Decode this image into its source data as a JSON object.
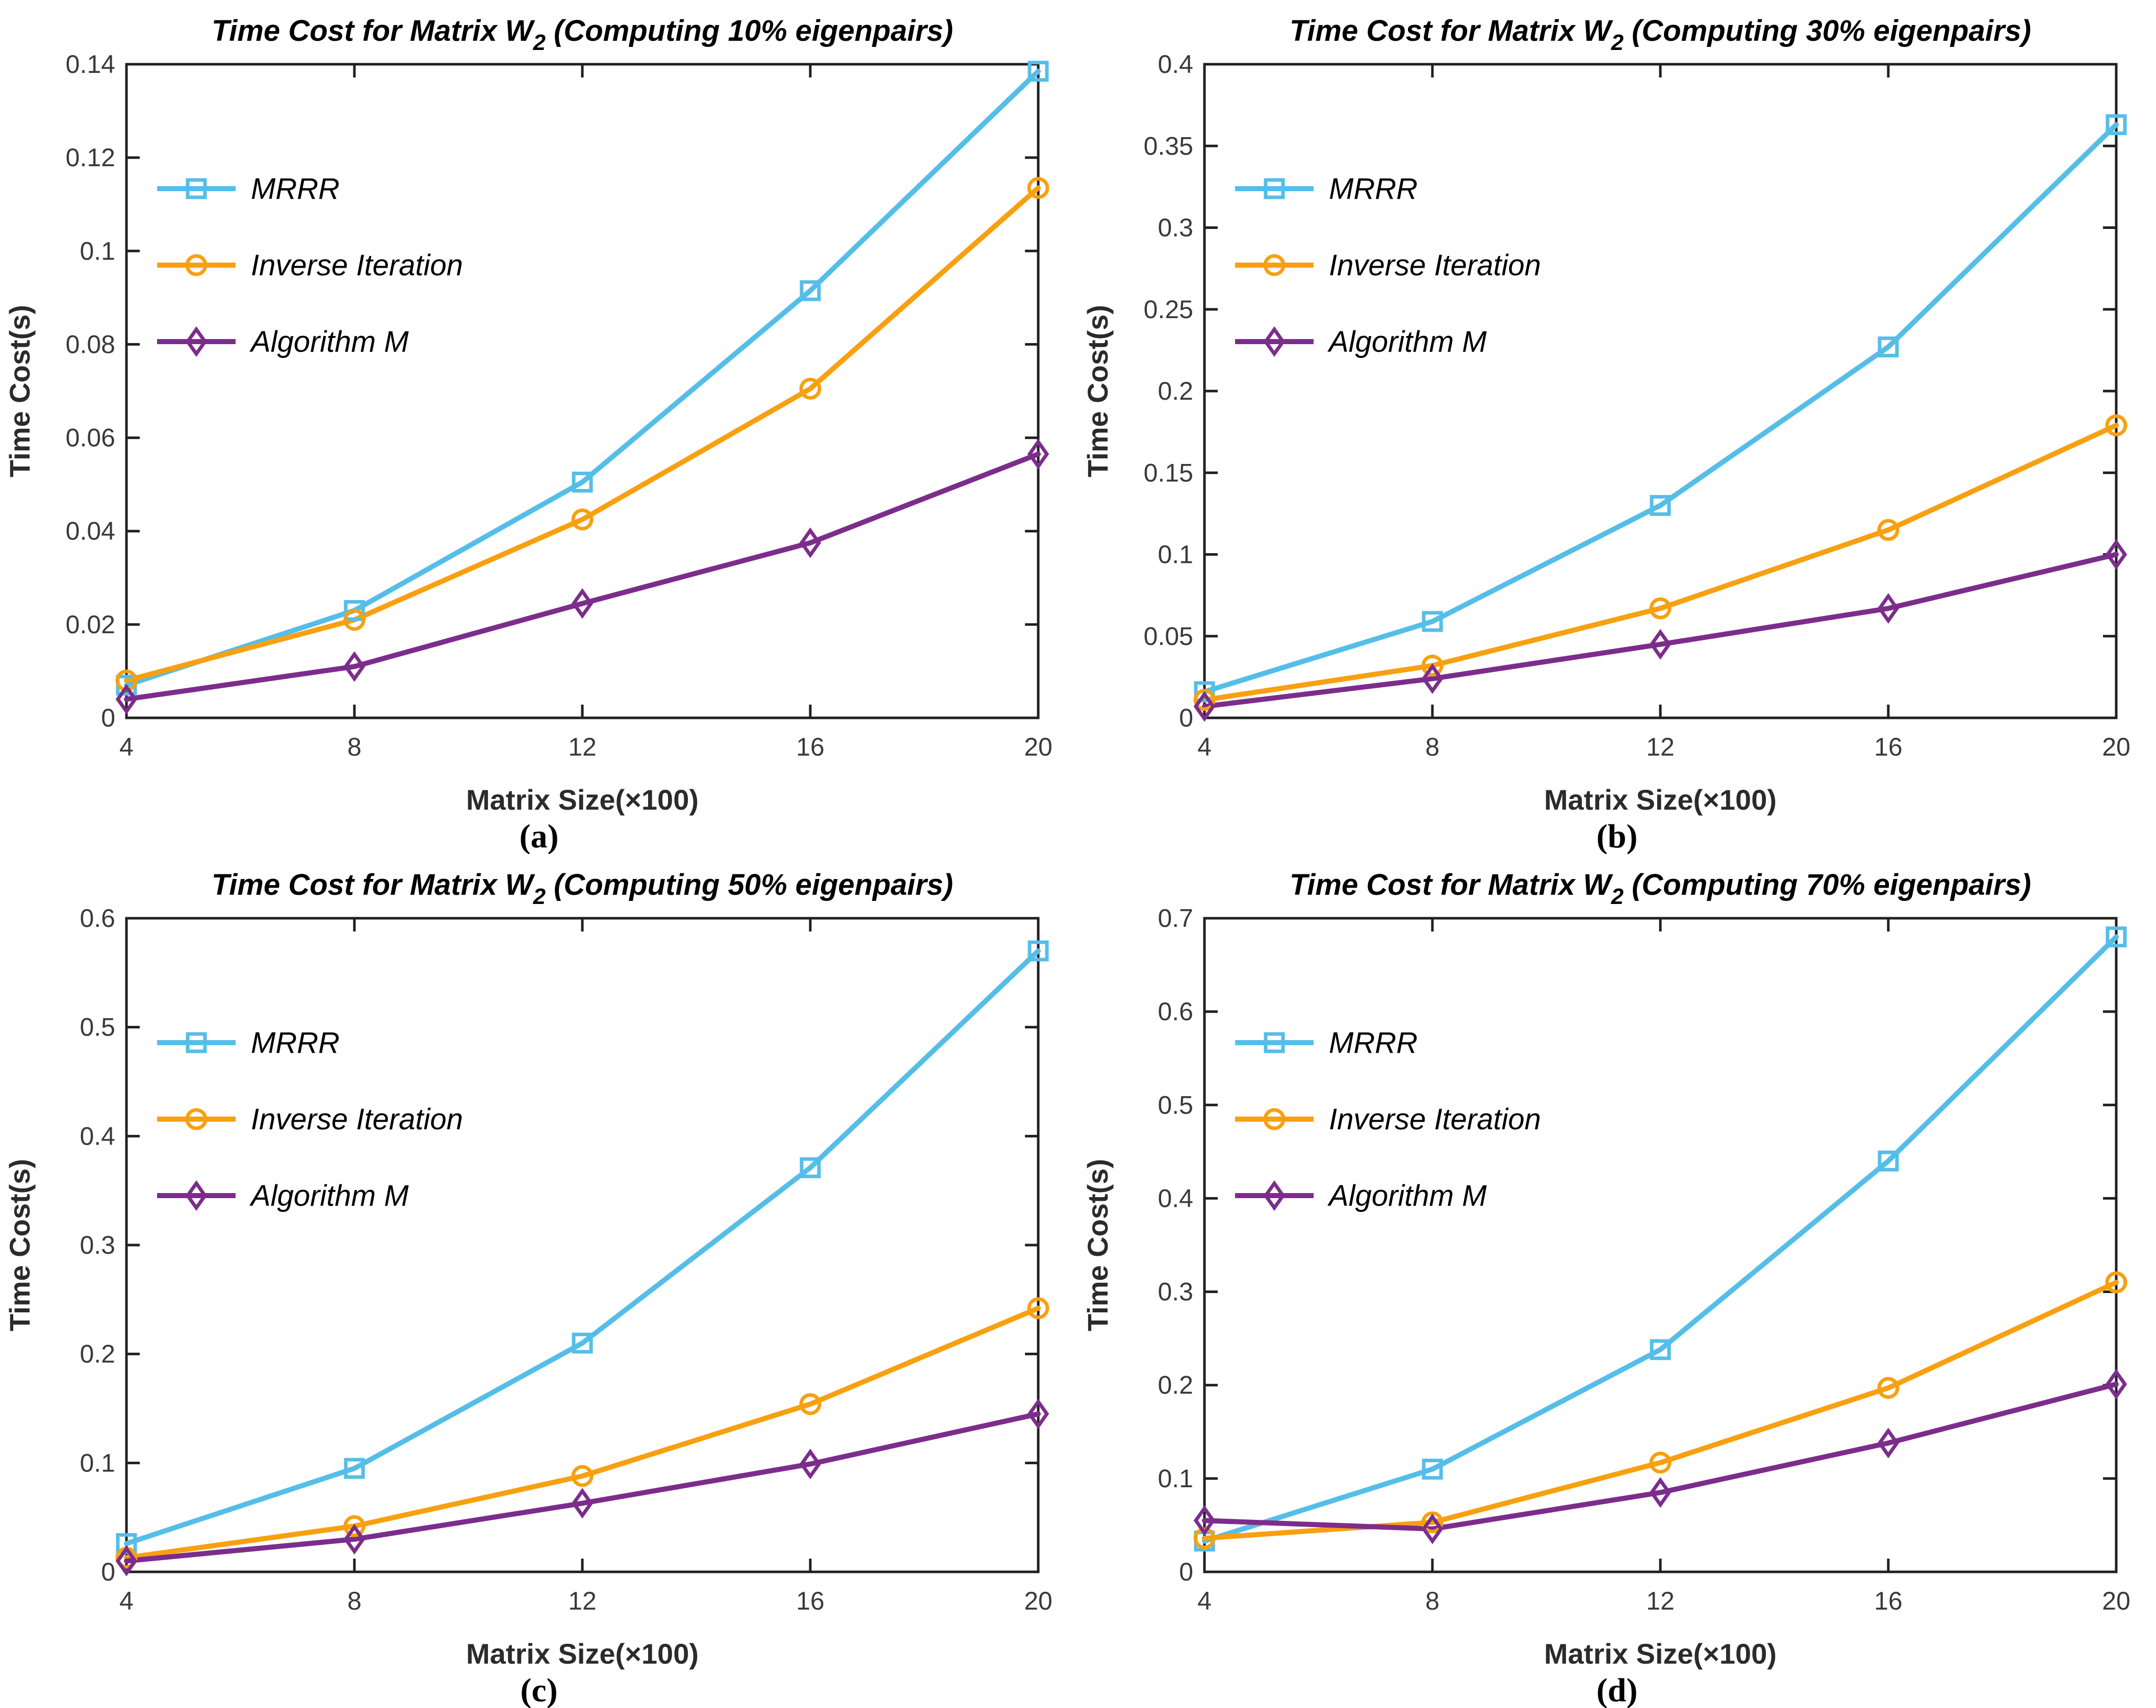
{
  "figure": {
    "background": "#ffffff",
    "axis_color": "#202020",
    "tick_text_color": "#3a3a3a"
  },
  "chart_data": [
    {
      "type": "line",
      "panel_label": "(a)",
      "title_parts": {
        "main": "Time Cost for Matrix W",
        "subscript": "2",
        "rest": " (Computing 10% eigenpairs)"
      },
      "xlabel": "Matrix Size(×100)",
      "ylabel": "Time Cost(s)",
      "xlim": [
        4,
        20
      ],
      "ylim": [
        0,
        0.14
      ],
      "x": [
        4,
        8,
        12,
        16,
        20
      ],
      "xtick_labels": [
        "4",
        "8",
        "12",
        "16",
        "20"
      ],
      "ytick_values": [
        0,
        0.02,
        0.04,
        0.06,
        0.08,
        0.1,
        0.12,
        0.14
      ],
      "ytick_labels": [
        "0",
        "0.02",
        "0.04",
        "0.06",
        "0.08",
        "0.1",
        "0.12",
        "0.14"
      ],
      "grid": false,
      "legend_position": "top-left",
      "series": [
        {
          "name": "MRRR",
          "marker": "square",
          "color": "#55BEE8",
          "values": [
            0.007,
            0.023,
            0.0505,
            0.0915,
            0.1385
          ]
        },
        {
          "name": "Inverse Iteration",
          "marker": "circle",
          "color": "#F8A010",
          "values": [
            0.008,
            0.021,
            0.0425,
            0.0705,
            0.1135
          ]
        },
        {
          "name": "Algorithm M",
          "marker": "diamond",
          "color": "#7C2D8C",
          "values": [
            0.004,
            0.011,
            0.0245,
            0.0375,
            0.0565
          ]
        }
      ]
    },
    {
      "type": "line",
      "panel_label": "(b)",
      "title_parts": {
        "main": "Time Cost for Matrix W",
        "subscript": "2",
        "rest": " (Computing 30% eigenpairs)"
      },
      "xlabel": "Matrix Size(×100)",
      "ylabel": "Time Cost(s)",
      "xlim": [
        4,
        20
      ],
      "ylim": [
        0,
        0.4
      ],
      "x": [
        4,
        8,
        12,
        16,
        20
      ],
      "xtick_labels": [
        "4",
        "8",
        "12",
        "16",
        "20"
      ],
      "ytick_values": [
        0,
        0.05,
        0.1,
        0.15,
        0.2,
        0.25,
        0.3,
        0.35,
        0.4
      ],
      "ytick_labels": [
        "0",
        "0.05",
        "0.1",
        "0.15",
        "0.2",
        "0.25",
        "0.3",
        "0.35",
        "0.4"
      ],
      "grid": false,
      "legend_position": "top-left",
      "series": [
        {
          "name": "MRRR",
          "marker": "square",
          "color": "#55BEE8",
          "values": [
            0.016,
            0.059,
            0.13,
            0.227,
            0.363
          ]
        },
        {
          "name": "Inverse Iteration",
          "marker": "circle",
          "color": "#F8A010",
          "values": [
            0.011,
            0.032,
            0.067,
            0.115,
            0.179
          ]
        },
        {
          "name": "Algorithm M",
          "marker": "diamond",
          "color": "#7C2D8C",
          "values": [
            0.007,
            0.024,
            0.045,
            0.067,
            0.1
          ]
        }
      ]
    },
    {
      "type": "line",
      "panel_label": "(c)",
      "title_parts": {
        "main": "Time Cost for Matrix W",
        "subscript": "2",
        "rest": " (Computing 50% eigenpairs)"
      },
      "xlabel": "Matrix Size(×100)",
      "ylabel": "Time Cost(s)",
      "xlim": [
        4,
        20
      ],
      "ylim": [
        0,
        0.6
      ],
      "x": [
        4,
        8,
        12,
        16,
        20
      ],
      "xtick_labels": [
        "4",
        "8",
        "12",
        "16",
        "20"
      ],
      "ytick_values": [
        0,
        0.1,
        0.2,
        0.3,
        0.4,
        0.5,
        0.6
      ],
      "ytick_labels": [
        "0",
        "0.1",
        "0.2",
        "0.3",
        "0.4",
        "0.5",
        "0.6"
      ],
      "grid": false,
      "legend_position": "top-left",
      "series": [
        {
          "name": "MRRR",
          "marker": "square",
          "color": "#55BEE8",
          "values": [
            0.026,
            0.095,
            0.21,
            0.371,
            0.57
          ]
        },
        {
          "name": "Inverse Iteration",
          "marker": "circle",
          "color": "#F8A010",
          "values": [
            0.013,
            0.042,
            0.088,
            0.154,
            0.242
          ]
        },
        {
          "name": "Algorithm M",
          "marker": "diamond",
          "color": "#7C2D8C",
          "values": [
            0.01,
            0.03,
            0.063,
            0.099,
            0.145
          ]
        }
      ]
    },
    {
      "type": "line",
      "panel_label": "(d)",
      "title_parts": {
        "main": "Time Cost for Matrix W",
        "subscript": "2",
        "rest": " (Computing 70% eigenpairs)"
      },
      "xlabel": "Matrix Size(×100)",
      "ylabel": "Time Cost(s)",
      "xlim": [
        4,
        20
      ],
      "ylim": [
        0,
        0.7
      ],
      "x": [
        4,
        8,
        12,
        16,
        20
      ],
      "xtick_labels": [
        "4",
        "8",
        "12",
        "16",
        "20"
      ],
      "ytick_values": [
        0,
        0.1,
        0.2,
        0.3,
        0.4,
        0.5,
        0.6,
        0.7
      ],
      "ytick_labels": [
        "0",
        "0.1",
        "0.2",
        "0.3",
        "0.4",
        "0.5",
        "0.6",
        "0.7"
      ],
      "grid": false,
      "legend_position": "top-left",
      "series": [
        {
          "name": "MRRR",
          "marker": "square",
          "color": "#55BEE8",
          "values": [
            0.033,
            0.11,
            0.238,
            0.44,
            0.68
          ]
        },
        {
          "name": "Inverse Iteration",
          "marker": "circle",
          "color": "#F8A010",
          "values": [
            0.036,
            0.053,
            0.117,
            0.197,
            0.31
          ]
        },
        {
          "name": "Algorithm M",
          "marker": "diamond",
          "color": "#7C2D8C",
          "values": [
            0.055,
            0.046,
            0.085,
            0.138,
            0.201
          ]
        }
      ]
    }
  ]
}
